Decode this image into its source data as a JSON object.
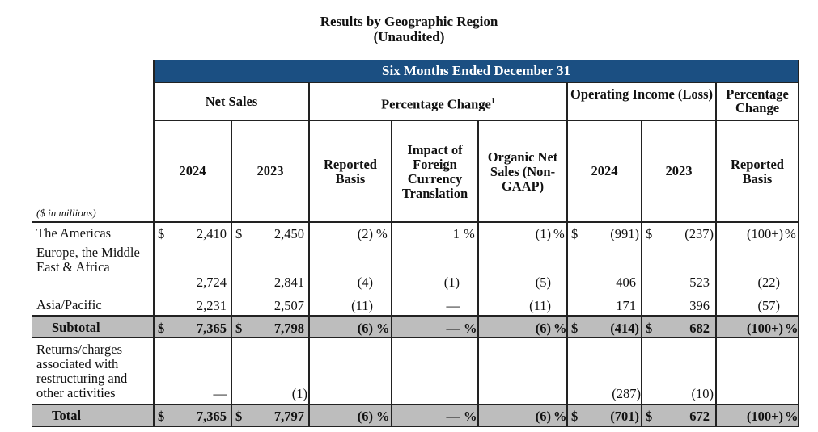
{
  "title": "Results by Geographic Region",
  "subtitle": "(Unaudited)",
  "period_header": "Six Months Ended December 31",
  "group_headers": {
    "net_sales": "Net Sales",
    "pct_change": "Percentage Change",
    "pct_change_sup": "1",
    "op_income": "Operating Income (Loss)",
    "pct_change2": "Percentage Change"
  },
  "columns": {
    "ns_2024": "2024",
    "ns_2023": "2023",
    "reported": "Reported Basis",
    "fx": "Impact of Foreign Currency Translation",
    "organic": "Organic Net Sales (Non-GAAP)",
    "oi_2024": "2024",
    "oi_2023": "2023",
    "reported2": "Reported Basis"
  },
  "units_note": "($ in millions)",
  "rows": [
    {
      "label": "The Americas",
      "ns24": "2,410",
      "ns23": "2,450",
      "rep": "(2)",
      "fx": "1",
      "org": "(1)",
      "oi24": "(991)",
      "oi23": "(237)",
      "rep2": "(100+)"
    },
    {
      "label": "Europe, the Middle East & Africa",
      "ns24": "2,724",
      "ns23": "2,841",
      "rep": "(4)",
      "fx": "(1)",
      "org": "(5)",
      "oi24": "406",
      "oi23": "523",
      "rep2": "(22)"
    },
    {
      "label": "Asia/Pacific",
      "ns24": "2,231",
      "ns23": "2,507",
      "rep": "(11)",
      "fx": "—",
      "org": "(11)",
      "oi24": "171",
      "oi23": "396",
      "rep2": "(57)"
    },
    {
      "label": "Subtotal",
      "ns24": "7,365",
      "ns23": "7,798",
      "rep": "(6)",
      "fx": "—",
      "org": "(6)",
      "oi24": "(414)",
      "oi23": "682",
      "rep2": "(100+)"
    },
    {
      "label": "Returns/charges associated with restructuring and other activities",
      "ns24": "—",
      "ns23": "(1)",
      "oi24": "(287)",
      "oi23": "(10)"
    },
    {
      "label": "Total",
      "ns24": "7,365",
      "ns23": "7,797",
      "rep": "(6)",
      "fx": "—",
      "org": "(6)",
      "oi24": "(701)",
      "oi23": "672",
      "rep2": "(100+)"
    }
  ],
  "symbols": {
    "dollar": "$",
    "percent": "%"
  },
  "colors": {
    "header_bg": "#1b4f82",
    "subtotal_bg": "#bdbdbd"
  }
}
